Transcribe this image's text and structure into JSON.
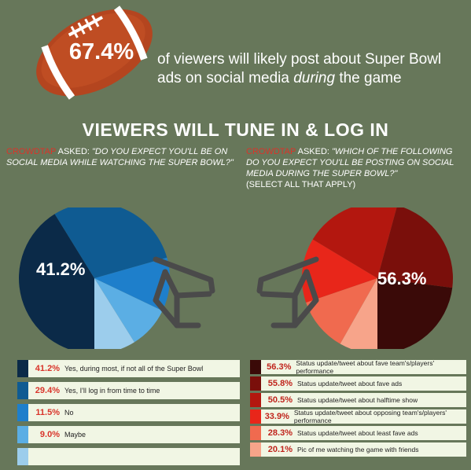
{
  "header": {
    "stat": "67.4%",
    "text_before": "of viewers will likely post about Super Bowl ads on social media ",
    "text_emph": "during",
    "text_after": " the game"
  },
  "section_title": "VIEWERS WILL TUNE IN & LOG IN",
  "left_question": {
    "brand": "CROWDTAP",
    "asked": " ASKED: ",
    "text": "\"DO YOU EXPECT YOU'LL BE ON SOCIAL MEDIA WHILE WATCHING THE SUPER BOWL?\""
  },
  "right_question": {
    "brand": "CROWDTAP",
    "asked": " ASKED: ",
    "text": "\"WHICH OF THE FOLLOWING DO YOU EXPECT YOU'LL BE POSTING ON SOCIAL MEDIA DURING THE SUPER BOWL?\"",
    "note": "(SELECT ALL THAT APPLY)"
  },
  "chart_data": [
    {
      "type": "pie",
      "title": "",
      "highlight_label": "41.2%",
      "slices": [
        {
          "label": "Yes, during most, if not all of the Super Bowl",
          "value": 41.2,
          "display": "41.2%",
          "color": "#0b2a48"
        },
        {
          "label": "Yes, I'll log in from time to time",
          "value": 29.4,
          "display": "29.4%",
          "color": "#0f5b92"
        },
        {
          "label": "No",
          "value": 11.5,
          "display": "11.5%",
          "color": "#1e7fcb"
        },
        {
          "label": "Maybe",
          "value": 9.0,
          "display": "9.0%",
          "color": "#5baee4"
        },
        {
          "label": "",
          "value": 8.9,
          "display": "",
          "color": "#9ccdec"
        }
      ]
    },
    {
      "type": "pie",
      "title": "",
      "highlight_label": "56.3%",
      "slices": [
        {
          "label": "Status update/tweet about fave team's/players' performance",
          "value": 56.3,
          "display": "56.3%",
          "color": "#3a0a08"
        },
        {
          "label": "Status update/tweet about fave ads",
          "value": 55.8,
          "display": "55.8%",
          "color": "#7a0f0b"
        },
        {
          "label": "Status update/tweet about halftime show",
          "value": 50.5,
          "display": "50.5%",
          "color": "#b3170f"
        },
        {
          "label": "Status update/tweet about opposing team's/players' performance",
          "value": 33.9,
          "display": "33.9%",
          "color": "#e8261a"
        },
        {
          "label": "Status update/tweet about least fave ads",
          "value": 28.3,
          "display": "28.3%",
          "color": "#f06a4f"
        },
        {
          "label": "Pic of me watching the game with friends",
          "value": 20.1,
          "display": "20.1%",
          "color": "#f7a48a"
        }
      ]
    }
  ]
}
